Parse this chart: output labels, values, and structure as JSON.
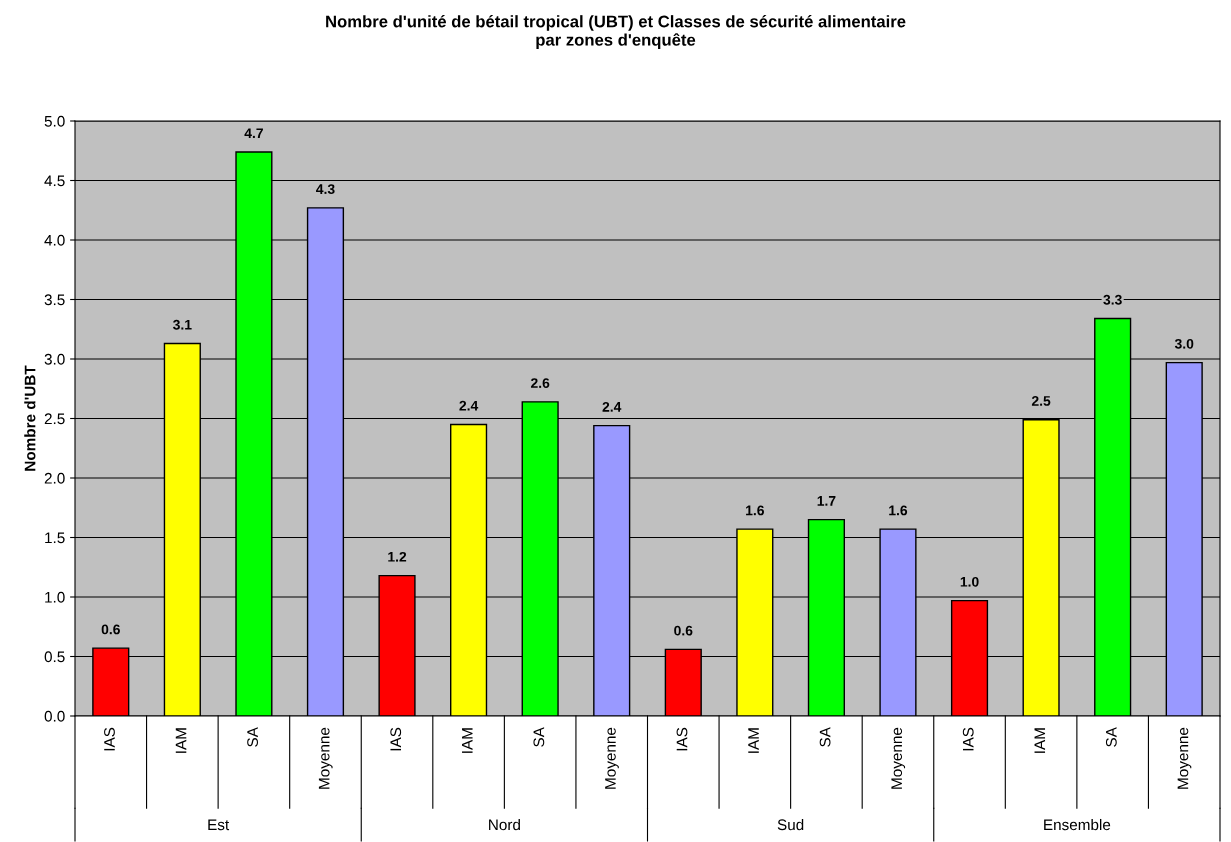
{
  "chart_data": {
    "type": "bar",
    "title": "Nombre d'unité de bétail tropical (UBT) et Classes de sécurité alimentaire\npar zones d'enquête",
    "ylabel": "Nombre d'UBT",
    "categories": [
      "IAS",
      "IAM",
      "SA",
      "Moyenne",
      "IAS",
      "IAM",
      "SA",
      "Moyenne",
      "IAS",
      "IAM",
      "SA",
      "Moyenne",
      "IAS",
      "IAM",
      "SA",
      "Moyenne"
    ],
    "values": [
      0.57,
      3.13,
      4.74,
      4.27,
      1.18,
      2.45,
      2.64,
      2.44,
      0.56,
      1.57,
      1.65,
      1.57,
      0.97,
      2.49,
      3.34,
      2.97
    ],
    "value_labels": [
      "0.6",
      "3.1",
      "4.7",
      "4.3",
      "1.2",
      "2.4",
      "2.6",
      "2.4",
      "0.6",
      "1.6",
      "1.7",
      "1.6",
      "1.0",
      "2.5",
      "3.3",
      "3.0"
    ],
    "colors": [
      "#ff0000",
      "#ffff00",
      "#00ff00",
      "#9999ff",
      "#ff0000",
      "#ffff00",
      "#00ff00",
      "#9999ff",
      "#ff0000",
      "#ffff00",
      "#00ff00",
      "#9999ff",
      "#ff0000",
      "#ffff00",
      "#00ff00",
      "#9999ff"
    ],
    "annotations": [
      "Est",
      "Nord",
      "Sud",
      "Ensemble"
    ],
    "ylim": [
      0,
      5
    ],
    "yticks": [
      {
        "value": 0,
        "label": "0.0"
      },
      {
        "value": 0.5,
        "label": "0.5"
      },
      {
        "value": 1,
        "label": "1.0"
      },
      {
        "value": 1.5,
        "label": "1.5"
      },
      {
        "value": 2,
        "label": "2.0"
      },
      {
        "value": 2.5,
        "label": "2.5"
      },
      {
        "value": 3,
        "label": "3.0"
      },
      {
        "value": 3.5,
        "label": "3.5"
      },
      {
        "value": 4,
        "label": "4.0"
      },
      {
        "value": 4.5,
        "label": "4.5"
      },
      {
        "value": 5,
        "label": "5.0"
      }
    ],
    "grid": "y"
  }
}
